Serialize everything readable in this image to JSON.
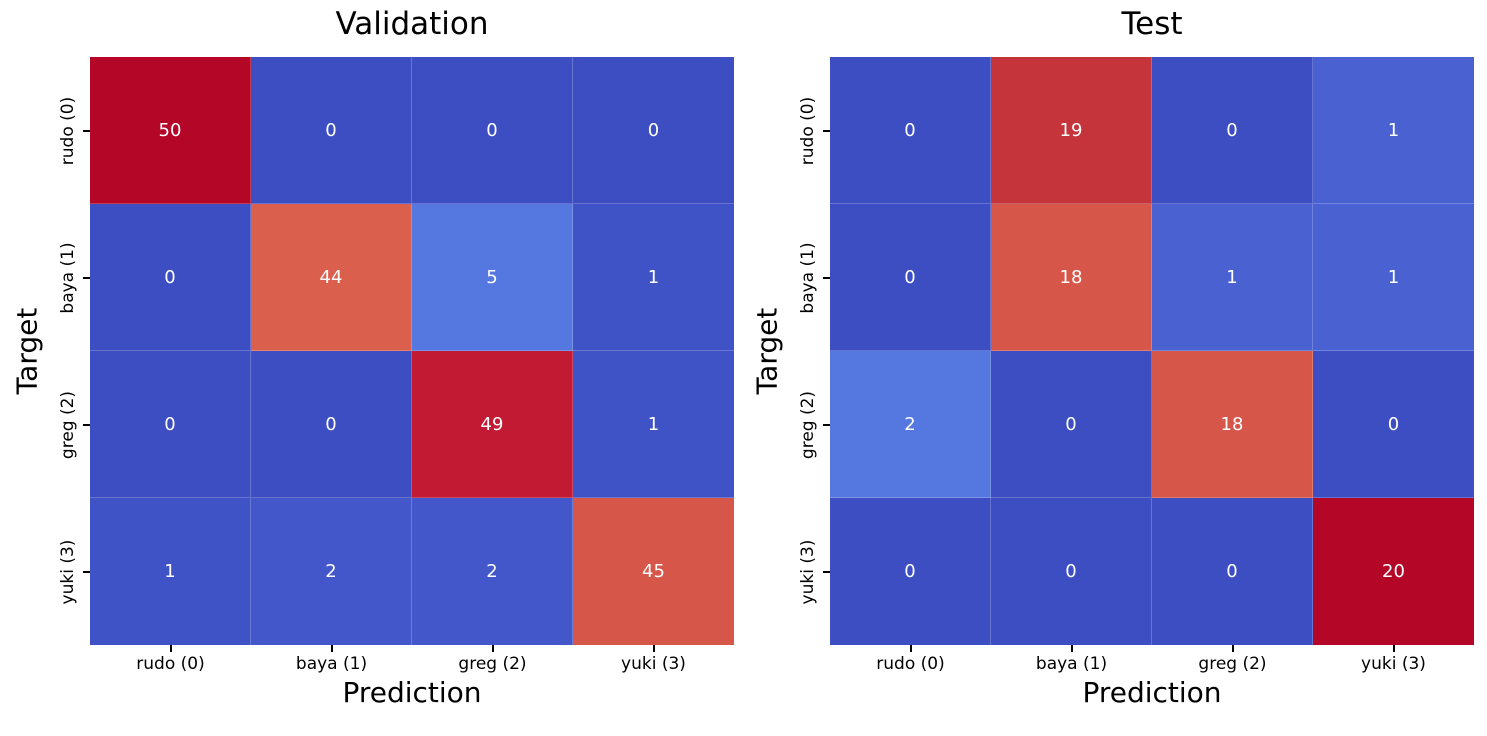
{
  "figure": {
    "background": "#ffffff",
    "text_color": "#000000"
  },
  "chart_data": [
    {
      "type": "heatmap",
      "title": "Validation",
      "xlabel": "Prediction",
      "ylabel": "Target",
      "x_ticklabels": [
        "rudo (0)",
        "baya (1)",
        "greg (2)",
        "yuki (3)"
      ],
      "y_ticklabels": [
        "rudo (0)",
        "baya (1)",
        "greg (2)",
        "yuki (3)"
      ],
      "matrix": [
        [
          50,
          0,
          0,
          0
        ],
        [
          0,
          44,
          5,
          1
        ],
        [
          0,
          0,
          49,
          1
        ],
        [
          1,
          2,
          2,
          45
        ]
      ],
      "vmin": 0,
      "vmax": 50,
      "colormap": "coolwarm",
      "annotation_color": "#ffffff",
      "cell_colors": [
        [
          "#B40728",
          "#3C4EC2",
          "#3C4EC2",
          "#3C4EC2"
        ],
        [
          "#3C4EC2",
          "#DA5F4C",
          "#5577E0",
          "#3F53C6"
        ],
        [
          "#3C4EC2",
          "#3C4EC2",
          "#C11A32",
          "#3F53C6"
        ],
        [
          "#3F53C6",
          "#4357CB",
          "#4357CB",
          "#D6564A"
        ]
      ]
    },
    {
      "type": "heatmap",
      "title": "Test",
      "xlabel": "Prediction",
      "ylabel": "Target",
      "x_ticklabels": [
        "rudo (0)",
        "baya (1)",
        "greg (2)",
        "yuki (3)"
      ],
      "y_ticklabels": [
        "rudo (0)",
        "baya (1)",
        "greg (2)",
        "yuki (3)"
      ],
      "matrix": [
        [
          0,
          19,
          0,
          1
        ],
        [
          0,
          18,
          1,
          1
        ],
        [
          2,
          0,
          18,
          0
        ],
        [
          0,
          0,
          0,
          20
        ]
      ],
      "vmin": 0,
      "vmax": 20,
      "colormap": "coolwarm",
      "annotation_color": "#ffffff",
      "cell_colors": [
        [
          "#3C4EC2",
          "#C5343B",
          "#3C4EC2",
          "#4A61D2"
        ],
        [
          "#3C4EC2",
          "#D6564A",
          "#4A61D2",
          "#4A61D2"
        ],
        [
          "#5577E0",
          "#3C4EC2",
          "#D6564A",
          "#3C4EC2"
        ],
        [
          "#3C4EC2",
          "#3C4EC2",
          "#3C4EC2",
          "#B40728"
        ]
      ]
    }
  ]
}
